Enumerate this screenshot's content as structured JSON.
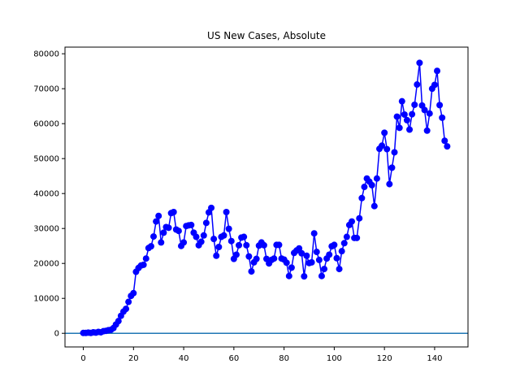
{
  "chart_data": {
    "type": "line",
    "title": "US New Cases, Absolute",
    "xlabel": "",
    "ylabel": "",
    "xlim": [
      -7.3,
      153.3
    ],
    "ylim": [
      -3900,
      81900
    ],
    "xticks": [
      0,
      20,
      40,
      60,
      80,
      100,
      120,
      140
    ],
    "yticks": [
      0,
      10000,
      20000,
      30000,
      40000,
      50000,
      60000,
      70000,
      80000
    ],
    "grid": false,
    "legend": "none",
    "line_color": "#0000ff",
    "baseline": {
      "y": 0,
      "color": "#1f77b4"
    },
    "series": [
      {
        "x": [
          0,
          1,
          2,
          3,
          4,
          5,
          6,
          7,
          8,
          9,
          10,
          11,
          12,
          13,
          14,
          15,
          16,
          17,
          18,
          19,
          20,
          21,
          22,
          23,
          24,
          25,
          26,
          27,
          28,
          29,
          30,
          31,
          32,
          33,
          34,
          35,
          36,
          37,
          38,
          39,
          40,
          41,
          42,
          43,
          44,
          45,
          46,
          47,
          48,
          49,
          50,
          51,
          52,
          53,
          54,
          55,
          56,
          57,
          58,
          59,
          60,
          61,
          62,
          63,
          64,
          65,
          66,
          67,
          68,
          69,
          70,
          71,
          72,
          73,
          74,
          75,
          76,
          77,
          78,
          79,
          80,
          81,
          82,
          83,
          84,
          85,
          86,
          87,
          88,
          89,
          90,
          91,
          92,
          93,
          94,
          95,
          96,
          97,
          98,
          99,
          100,
          101,
          102,
          103,
          104,
          105,
          106,
          107,
          108,
          109,
          110,
          111,
          112,
          113,
          114,
          115,
          116,
          117,
          118,
          119,
          120,
          121,
          122,
          123,
          124,
          125,
          126,
          127,
          128,
          129,
          130,
          131,
          132,
          133,
          134,
          135,
          136,
          137,
          138,
          139,
          140,
          141,
          142,
          143,
          144,
          145
        ],
        "values": [
          100,
          100,
          200,
          100,
          300,
          200,
          400,
          300,
          600,
          700,
          900,
          1000,
          1500,
          2500,
          3500,
          5000,
          6200,
          7000,
          9000,
          10700,
          11500,
          17600,
          18700,
          19400,
          19600,
          21400,
          24400,
          24900,
          27700,
          32000,
          33600,
          26000,
          28800,
          30400,
          30200,
          34400,
          34700,
          29700,
          29300,
          25000,
          26000,
          30700,
          30900,
          31000,
          28800,
          27600,
          25200,
          26200,
          28000,
          31600,
          34600,
          35900,
          27000,
          22200,
          24700,
          27600,
          28000,
          34700,
          29900,
          26400,
          21300,
          22500,
          25200,
          27400,
          27600,
          25200,
          22000,
          17700,
          20300,
          21300,
          25100,
          26000,
          25200,
          21300,
          20000,
          21000,
          21400,
          25300,
          25300,
          21400,
          21100,
          20200,
          16400,
          18800,
          23000,
          23700,
          24300,
          22900,
          16300,
          22200,
          20100,
          20300,
          28600,
          23300,
          21000,
          16400,
          18400,
          21400,
          22500,
          24900,
          25300,
          21500,
          18400,
          23500,
          25800,
          27600,
          31000,
          32000,
          27300,
          27300,
          32900,
          38700,
          41900,
          44300,
          43400,
          42400,
          36400,
          44300,
          52800,
          53700,
          57400,
          52700,
          42700,
          47400,
          51800,
          62000,
          58800,
          66400,
          62600,
          61000,
          58300,
          62700,
          65400,
          71200,
          77400,
          65200,
          63900,
          58000,
          62900,
          70000,
          71100,
          75100,
          65300,
          61700,
          55100,
          53500
        ]
      }
    ]
  }
}
